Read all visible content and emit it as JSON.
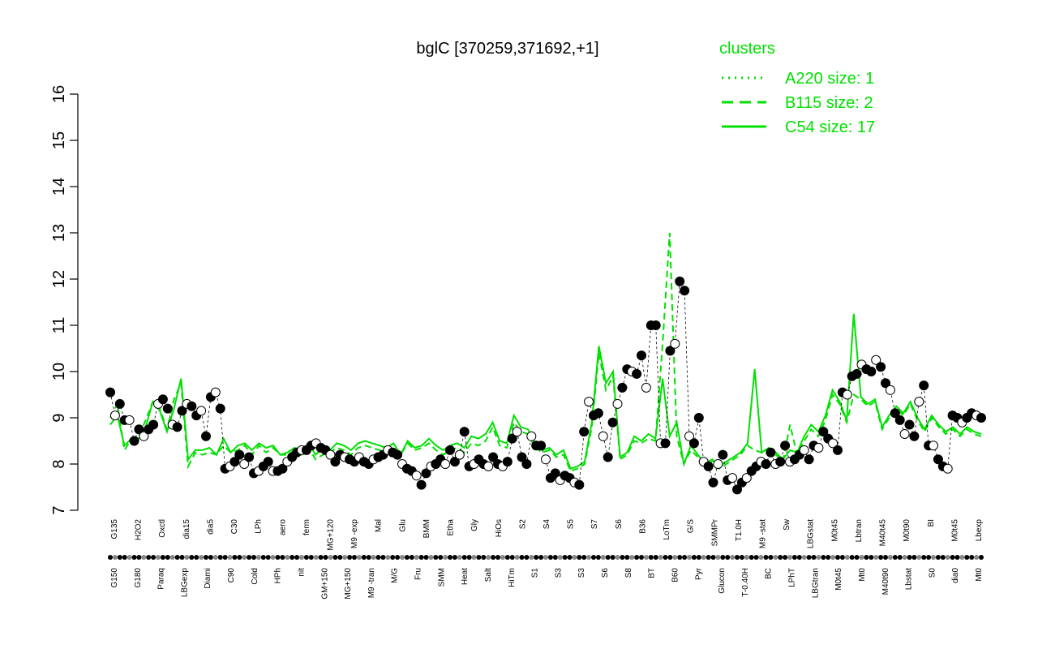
{
  "chart_data": {
    "type": "line",
    "title": "bglC [370259,371692,+1]",
    "xlabel": "",
    "ylabel": "",
    "ylim": [
      7,
      16
    ],
    "yticks": [
      7,
      8,
      9,
      10,
      11,
      12,
      13,
      14,
      15,
      16
    ],
    "grid": false,
    "legend": {
      "title": "clusters",
      "position": "top-right",
      "entries": [
        {
          "label": "A220 size: 1",
          "style": "dotted"
        },
        {
          "label": "B115 size: 2",
          "style": "dashed"
        },
        {
          "label": "C54 size: 17",
          "style": "solid"
        }
      ]
    },
    "colors": {
      "line": "#00e000",
      "point_fill_dark": "#000000",
      "point_fill_light": "#ffffff",
      "text": "#000000",
      "legend": "#00e000"
    },
    "tick_labels_top": [
      "G135",
      "H2O2",
      "Oxctl",
      "dia15",
      "dia5",
      "C30",
      "LPh",
      "aero",
      "ferm",
      "MG+120",
      "M9 -exp",
      "Mal",
      "Glu",
      "BMM",
      "Etha",
      "Gly",
      "HiOs",
      "S2",
      "S4",
      "S5",
      "S7",
      "S6",
      "B36",
      "LoTm",
      "G/S",
      "SMMPr",
      "T1.0H",
      "M9 -stat",
      "Sw",
      "LBGstat",
      "M0t45",
      "Lbtran",
      "M40t45",
      "M0t90",
      "BI",
      "M0t45",
      "Lbexp"
    ],
    "tick_labels_bottom": [
      "G150",
      "G180",
      "Paraq",
      "LBGexp",
      "Diami",
      "C90",
      "Cold",
      "HPh",
      "nit",
      "GM+150",
      "MG+150",
      "M9 -tran",
      "M/G",
      "Fru",
      "SMM",
      "Heat",
      "Salt",
      "HiTm",
      "S1",
      "S3",
      "S3",
      "S6",
      "S8",
      "BT",
      "B60",
      "Pyr",
      "Glucon",
      "T-0.40H",
      "BC",
      "LPhT",
      "LBGtran",
      "M0t45",
      "Mt0",
      "M40t90",
      "Lbstat",
      "S0",
      "dia0",
      "Mt0"
    ],
    "series": [
      {
        "name": "C54 size: 17",
        "values": [
          8.85,
          9.05,
          8.4,
          8.55,
          8.55,
          8.8,
          9.35,
          9.15,
          8.7,
          9.2,
          9.85,
          8.1,
          8.3,
          8.3,
          8.35,
          8.2,
          8.55,
          8.25,
          8.4,
          8.45,
          8.3,
          8.45,
          8.35,
          8.4,
          8.2,
          8.25,
          8.35,
          8.3,
          8.45,
          8.2,
          8.35,
          8.3,
          8.45,
          8.4,
          8.3,
          8.45,
          8.5,
          8.45,
          8.4,
          8.35,
          8.45,
          8.2,
          8.5,
          8.35,
          8.4,
          8.55,
          8.4,
          8.3,
          8.4,
          8.45,
          8.35,
          8.6,
          8.55,
          8.65,
          8.9,
          8.5,
          8.45,
          9.05,
          8.8,
          8.75,
          8.45,
          8.3,
          8.35,
          8.2,
          8.3,
          7.9,
          7.95,
          8.05,
          8.9,
          10.55,
          9.75,
          10.0,
          8.15,
          8.25,
          8.6,
          8.5,
          8.65,
          8.55,
          9.85,
          8.6,
          8.9,
          8.0,
          8.4,
          8.2,
          8.0,
          8.1,
          7.95,
          8.05,
          8.15,
          8.25,
          8.45,
          10.05,
          8.25,
          8.35,
          8.25,
          8.1,
          8.3,
          8.25,
          8.6,
          8.85,
          8.7,
          9.05,
          9.6,
          9.35,
          8.95,
          11.25,
          9.45,
          9.3,
          9.4,
          8.8,
          9.05,
          9.25,
          9.1,
          9.35,
          9.0,
          8.75,
          9.05,
          8.85,
          8.7,
          8.8,
          8.65,
          8.8,
          8.7,
          8.65
        ]
      },
      {
        "name": "B115 size: 2",
        "values": [
          9.0,
          9.3,
          8.3,
          8.55,
          8.6,
          8.95,
          9.35,
          9.2,
          8.75,
          9.4,
          9.75,
          7.95,
          8.25,
          8.2,
          8.25,
          8.2,
          8.4,
          8.25,
          8.3,
          8.4,
          8.2,
          8.4,
          8.25,
          8.35,
          8.2,
          8.2,
          8.3,
          8.2,
          8.35,
          8.1,
          8.2,
          8.25,
          8.35,
          8.3,
          8.2,
          8.35,
          8.4,
          8.35,
          8.3,
          8.3,
          8.35,
          8.2,
          8.45,
          8.3,
          8.35,
          8.45,
          8.3,
          8.2,
          8.3,
          8.35,
          8.25,
          8.45,
          8.4,
          8.5,
          8.8,
          8.4,
          8.35,
          8.9,
          8.7,
          8.65,
          8.35,
          8.25,
          8.3,
          8.15,
          8.2,
          7.85,
          7.9,
          8.0,
          8.8,
          10.4,
          9.6,
          9.9,
          8.1,
          8.2,
          8.5,
          8.45,
          8.55,
          8.5,
          10.6,
          13.0,
          8.6,
          8.0,
          8.3,
          8.15,
          7.95,
          8.05,
          7.9,
          8.0,
          8.1,
          8.2,
          8.4,
          8.3,
          8.25,
          8.3,
          8.2,
          8.05,
          8.85,
          8.2,
          8.5,
          8.75,
          8.6,
          8.95,
          9.5,
          9.3,
          8.9,
          9.5,
          9.4,
          9.25,
          9.35,
          8.75,
          9.0,
          9.2,
          9.05,
          9.3,
          8.95,
          8.7,
          9.0,
          8.8,
          8.65,
          8.75,
          8.6,
          8.75,
          8.65,
          8.6
        ]
      },
      {
        "name": "points",
        "values": [
          9.55,
          9.05,
          9.3,
          8.95,
          8.95,
          8.5,
          8.75,
          8.6,
          8.75,
          8.85,
          9.3,
          9.4,
          9.2,
          8.85,
          8.8,
          9.15,
          9.3,
          9.25,
          9.05,
          9.15,
          8.6,
          9.45,
          9.55,
          9.2,
          7.9,
          7.95,
          8.05,
          8.2,
          8.0,
          8.15,
          7.8,
          7.85,
          7.95,
          8.05,
          7.85,
          7.85,
          7.9,
          8.05,
          8.15,
          8.25,
          8.3,
          8.3,
          8.4,
          8.45,
          8.35,
          8.3,
          8.2,
          8.05,
          8.2,
          8.15,
          8.1,
          8.05,
          8.15,
          8.05,
          8.0,
          8.1,
          8.15,
          8.2,
          8.3,
          8.25,
          8.2,
          8.0,
          7.9,
          7.85,
          7.75,
          7.55,
          7.8,
          7.95,
          8.0,
          8.1,
          8.0,
          8.3,
          8.05,
          8.2,
          8.7,
          7.95,
          8.0,
          8.1,
          8.0,
          7.95,
          8.15,
          8.0,
          7.95,
          8.05,
          8.55,
          8.7,
          8.15,
          8.0,
          8.6,
          8.4,
          8.4,
          8.1,
          7.7,
          7.8,
          7.65,
          7.75,
          7.7,
          7.6,
          7.55,
          8.7,
          9.35,
          9.05,
          9.1,
          8.6,
          8.15,
          8.9,
          9.3,
          9.65,
          10.05,
          10.0,
          9.95,
          10.35,
          9.65,
          11.0,
          11.0,
          8.45,
          8.45,
          10.45,
          10.6,
          11.95,
          11.75,
          8.6,
          8.45,
          9.0,
          8.05,
          7.95,
          7.6,
          8.0,
          8.2,
          7.65,
          7.7,
          7.45,
          7.6,
          7.7,
          7.85,
          7.95,
          8.05,
          8.0,
          8.25,
          8.0,
          8.05,
          8.4,
          8.05,
          8.1,
          8.2,
          8.3,
          8.1,
          8.4,
          8.35,
          8.7,
          8.55,
          8.45,
          8.3,
          9.55,
          9.5,
          9.9,
          9.95,
          10.15,
          10.05,
          10.0,
          10.25,
          10.1,
          9.75,
          9.6,
          9.1,
          8.95,
          8.65,
          8.85,
          8.6,
          9.35,
          9.7,
          8.4,
          8.4,
          8.1,
          7.95,
          7.9,
          9.05,
          9.0,
          8.9,
          9.0,
          9.1,
          9.05,
          9.0
        ]
      }
    ]
  }
}
